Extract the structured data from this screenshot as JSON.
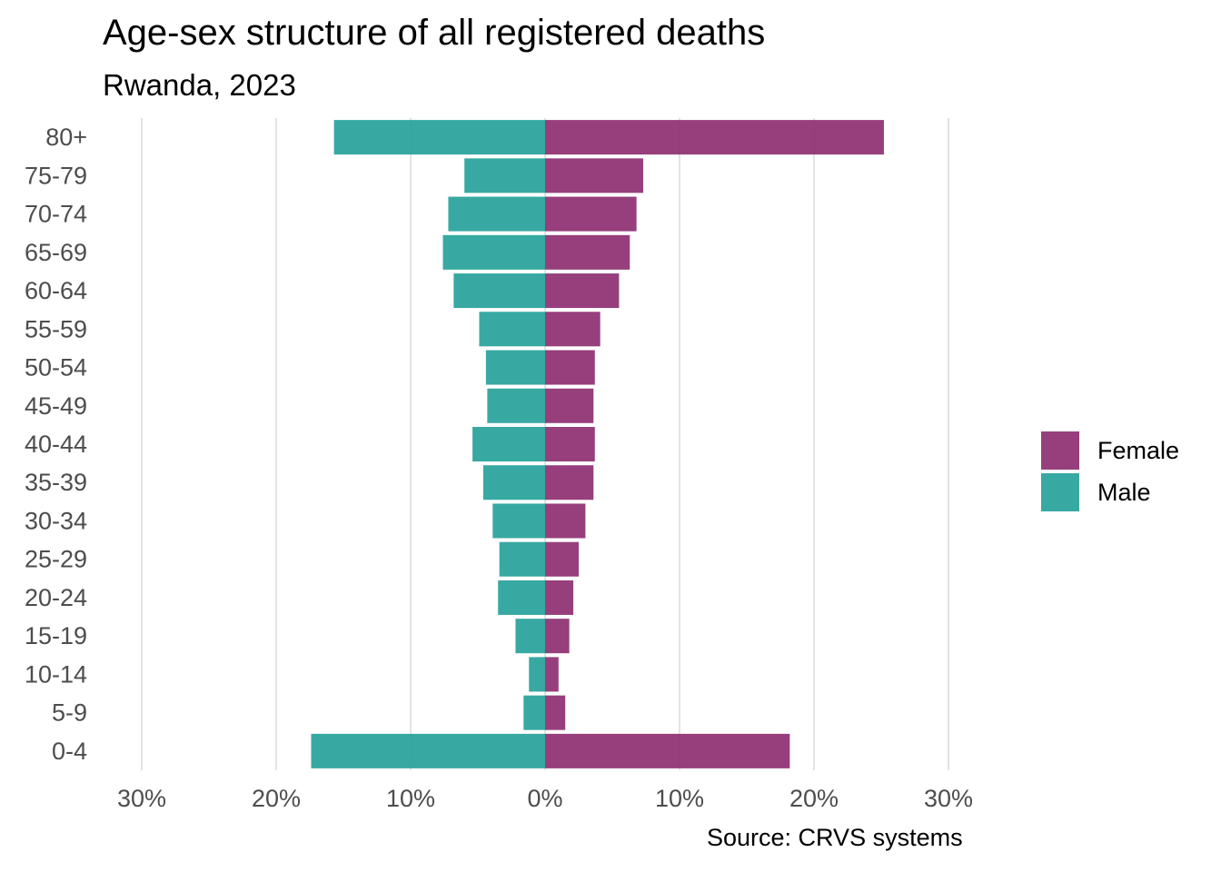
{
  "chart_data": {
    "type": "bar",
    "orientation": "horizontal",
    "title": "Age-sex structure of all registered deaths",
    "subtitle": "Rwanda, 2023",
    "caption": "Source: CRVS systems",
    "categories": [
      "0-4",
      "5-9",
      "10-14",
      "15-19",
      "20-24",
      "25-29",
      "30-34",
      "35-39",
      "40-44",
      "45-49",
      "50-54",
      "55-59",
      "60-64",
      "65-69",
      "70-74",
      "75-79",
      "80+"
    ],
    "series": [
      {
        "name": "Female",
        "color": "#8b2a6e",
        "values": [
          18.2,
          1.5,
          1.0,
          1.8,
          2.1,
          2.5,
          3.0,
          3.6,
          3.7,
          3.6,
          3.7,
          4.1,
          5.5,
          6.3,
          6.8,
          7.3,
          25.2
        ]
      },
      {
        "name": "Male",
        "color": "#21a098",
        "values": [
          17.4,
          1.6,
          1.2,
          2.2,
          3.5,
          3.4,
          3.9,
          4.6,
          5.4,
          4.3,
          4.4,
          4.9,
          6.8,
          7.6,
          7.2,
          6.0,
          15.7
        ]
      }
    ],
    "xlim": [
      -30,
      30
    ],
    "xticks": [
      -30,
      -20,
      -10,
      0,
      10,
      20,
      30
    ],
    "xtick_labels": [
      "30%",
      "20%",
      "10%",
      "0%",
      "10%",
      "20%",
      "30%"
    ],
    "xlabel": "",
    "ylabel": "",
    "grid": "vertical major",
    "legend_position": "right"
  }
}
